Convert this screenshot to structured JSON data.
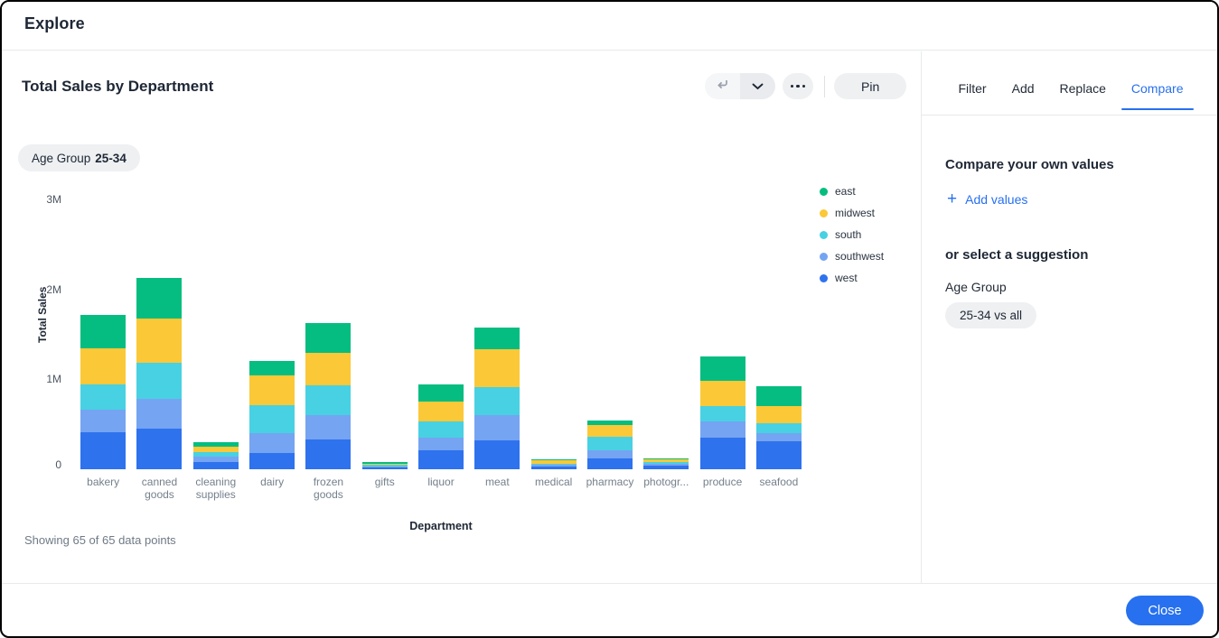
{
  "window": {
    "title": "Explore"
  },
  "chart_panel": {
    "title": "Total Sales by Department",
    "filter_chip": {
      "label": "Age Group",
      "value": "25-34"
    },
    "toolbar": {
      "pin_label": "Pin"
    },
    "footnote": "Showing 65 of 65 data points"
  },
  "chart_data": {
    "type": "bar",
    "stacked": true,
    "title": "Total Sales by Department",
    "xlabel": "Department",
    "ylabel": "Total Sales",
    "units": "millions",
    "ylim_millions": [
      0,
      3
    ],
    "yticks": [
      {
        "label": "0",
        "value": 0
      },
      {
        "label": "1M",
        "value": 1
      },
      {
        "label": "2M",
        "value": 2
      },
      {
        "label": "3M",
        "value": 3
      }
    ],
    "grid": false,
    "legend_position": "right",
    "stack_order_bottom_to_top": [
      "west",
      "southwest",
      "south",
      "midwest",
      "east"
    ],
    "categories": [
      "bakery",
      "canned goods",
      "cleaning supplies",
      "dairy",
      "frozen goods",
      "gifts",
      "liquor",
      "meat",
      "medical",
      "pharmacy",
      "photogr...",
      "produce",
      "seafood"
    ],
    "series": [
      {
        "name": "east",
        "color": "#05bd80",
        "values_millions": [
          0.38,
          0.46,
          0.05,
          0.16,
          0.34,
          0.015,
          0.19,
          0.25,
          0.01,
          0.05,
          0.01,
          0.28,
          0.22
        ]
      },
      {
        "name": "midwest",
        "color": "#fbc837",
        "values_millions": [
          0.4,
          0.49,
          0.06,
          0.33,
          0.36,
          0.015,
          0.22,
          0.42,
          0.035,
          0.13,
          0.03,
          0.28,
          0.19
        ]
      },
      {
        "name": "south",
        "color": "#48d1e2",
        "values_millions": [
          0.28,
          0.4,
          0.05,
          0.31,
          0.33,
          0.015,
          0.18,
          0.31,
          0.015,
          0.15,
          0.027,
          0.17,
          0.11
        ]
      },
      {
        "name": "southwest",
        "color": "#75a4f2",
        "values_millions": [
          0.25,
          0.33,
          0.06,
          0.22,
          0.27,
          0.015,
          0.14,
          0.28,
          0.02,
          0.09,
          0.017,
          0.18,
          0.09
        ]
      },
      {
        "name": "west",
        "color": "#2e72ee",
        "values_millions": [
          0.41,
          0.45,
          0.08,
          0.18,
          0.33,
          0.02,
          0.21,
          0.32,
          0.03,
          0.12,
          0.04,
          0.35,
          0.31
        ]
      }
    ]
  },
  "side_panel": {
    "tabs": [
      {
        "label": "Filter",
        "active": false
      },
      {
        "label": "Add",
        "active": false
      },
      {
        "label": "Replace",
        "active": false
      },
      {
        "label": "Compare",
        "active": true
      }
    ],
    "compare": {
      "own_values_heading": "Compare your own values",
      "add_values_label": "Add values",
      "suggestion_heading": "or select a suggestion",
      "suggestion_group": "Age Group",
      "suggestion_chip": "25-34 vs all"
    }
  },
  "footer": {
    "close_label": "Close"
  },
  "colors": {
    "accent_blue": "#2770ef",
    "chip_background": "#eef0f2",
    "divider": "#e7e9eb",
    "text_dark": "#1e2735",
    "text_gray": "#75808c"
  }
}
